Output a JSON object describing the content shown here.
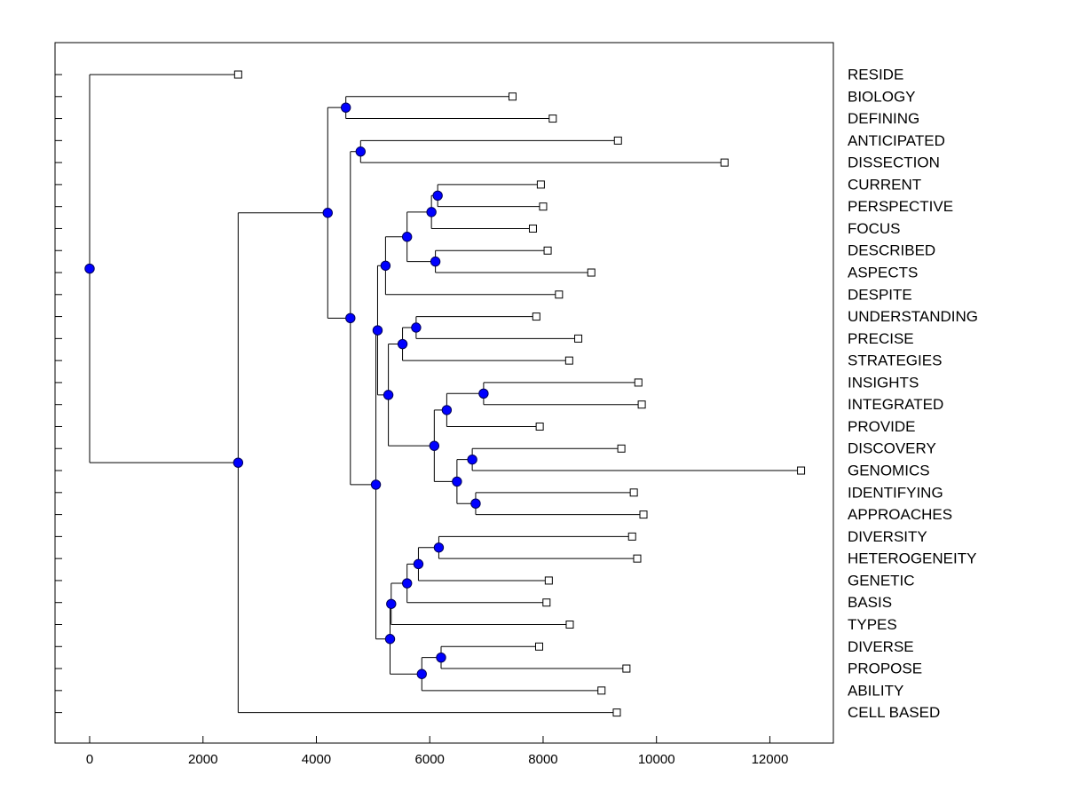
{
  "chart_data": {
    "type": "dendrogram",
    "title": "",
    "xlabel": "",
    "ylabel": "",
    "xlim": [
      -600,
      13200
    ],
    "x_ticks": [
      0,
      2000,
      4000,
      6000,
      8000,
      10000,
      12000
    ],
    "x_tick_labels": [
      "0",
      "2000",
      "4000",
      "6000",
      "8000",
      "10000",
      "12000"
    ],
    "leaves": [
      {
        "label": "RESIDE",
        "value": 2620
      },
      {
        "label": "BIOLOGY",
        "value": 7460
      },
      {
        "label": "DEFINING",
        "value": 8170
      },
      {
        "label": "ANTICIPATED",
        "value": 9320
      },
      {
        "label": "DISSECTION",
        "value": 11200
      },
      {
        "label": "CURRENT",
        "value": 7960
      },
      {
        "label": "PERSPECTIVE",
        "value": 8000
      },
      {
        "label": "FOCUS",
        "value": 7820
      },
      {
        "label": "DESCRIBED",
        "value": 8080
      },
      {
        "label": "ASPECTS",
        "value": 8850
      },
      {
        "label": "DESPITE",
        "value": 8280
      },
      {
        "label": "UNDERSTANDING",
        "value": 7880
      },
      {
        "label": "PRECISE",
        "value": 8620
      },
      {
        "label": "STRATEGIES",
        "value": 8460
      },
      {
        "label": "INSIGHTS",
        "value": 9680
      },
      {
        "label": "INTEGRATED",
        "value": 9740
      },
      {
        "label": "PROVIDE",
        "value": 7940
      },
      {
        "label": "DISCOVERY",
        "value": 9380
      },
      {
        "label": "GENOMICS",
        "value": 12550
      },
      {
        "label": "IDENTIFYING",
        "value": 9600
      },
      {
        "label": "APPROACHES",
        "value": 9770
      },
      {
        "label": "DIVERSITY",
        "value": 9570
      },
      {
        "label": "HETEROGENEITY",
        "value": 9660
      },
      {
        "label": "GENETIC",
        "value": 8100
      },
      {
        "label": "BASIS",
        "value": 8060
      },
      {
        "label": "TYPES",
        "value": 8470
      },
      {
        "label": "DIVERSE",
        "value": 7930
      },
      {
        "label": "PROPOSE",
        "value": 9470
      },
      {
        "label": "ABILITY",
        "value": 9030
      },
      {
        "label": "CELL BASED",
        "value": 9300
      }
    ],
    "merges": [
      {
        "id": "m_bio_def",
        "value": 4520,
        "children": [
          "L1",
          "L2"
        ]
      },
      {
        "id": "m_ant_dis",
        "value": 4780,
        "children": [
          "L3",
          "L4"
        ]
      },
      {
        "id": "m_cur_per",
        "value": 6140,
        "children": [
          "L5",
          "L6"
        ]
      },
      {
        "id": "m_cpf",
        "value": 6030,
        "children": [
          "m_cur_per",
          "L7"
        ]
      },
      {
        "id": "m_des_asp",
        "value": 6100,
        "children": [
          "L8",
          "L9"
        ]
      },
      {
        "id": "m_cpfda",
        "value": 5600,
        "children": [
          "m_cpf",
          "m_des_asp"
        ]
      },
      {
        "id": "m_despite_grp",
        "value": 5220,
        "children": [
          "m_cpfda",
          "L10"
        ]
      },
      {
        "id": "m_und_pre",
        "value": 5760,
        "children": [
          "L11",
          "L12"
        ]
      },
      {
        "id": "m_ups",
        "value": 5520,
        "children": [
          "m_und_pre",
          "L13"
        ]
      },
      {
        "id": "m_ins_int",
        "value": 6950,
        "children": [
          "L14",
          "L15"
        ]
      },
      {
        "id": "m_iip",
        "value": 6300,
        "children": [
          "m_ins_int",
          "L16"
        ]
      },
      {
        "id": "m_dis_gen",
        "value": 6750,
        "children": [
          "L17",
          "L18"
        ]
      },
      {
        "id": "m_ide_app",
        "value": 6810,
        "children": [
          "L19",
          "L20"
        ]
      },
      {
        "id": "m_dgia",
        "value": 6480,
        "children": [
          "m_dis_gen",
          "m_ide_app"
        ]
      },
      {
        "id": "m_iip_dgia",
        "value": 6080,
        "children": [
          "m_iip",
          "m_dgia"
        ]
      },
      {
        "id": "m_ups_rest",
        "value": 5270,
        "children": [
          "m_ups",
          "m_iip_dgia"
        ]
      },
      {
        "id": "m_upper_mid",
        "value": 5080,
        "children": [
          "m_despite_grp",
          "m_ups_rest"
        ]
      },
      {
        "id": "m_div_het",
        "value": 6160,
        "children": [
          "L21",
          "L22"
        ]
      },
      {
        "id": "m_dhg",
        "value": 5800,
        "children": [
          "m_div_het",
          "L23"
        ]
      },
      {
        "id": "m_dhgb",
        "value": 5600,
        "children": [
          "m_dhg",
          "L24"
        ]
      },
      {
        "id": "m_dhgbt",
        "value": 5320,
        "children": [
          "m_dhgb",
          "L25"
        ]
      },
      {
        "id": "m_dive_pro",
        "value": 6200,
        "children": [
          "L26",
          "L27"
        ]
      },
      {
        "id": "m_dpa",
        "value": 5860,
        "children": [
          "m_dive_pro",
          "L28"
        ]
      },
      {
        "id": "m_lower_grp",
        "value": 5300,
        "children": [
          "m_dhgbt",
          "m_dpa"
        ]
      },
      {
        "id": "m_mid_all",
        "value": 5050,
        "children": [
          "m_upper_mid",
          "m_lower_grp"
        ]
      },
      {
        "id": "m_ant_mid",
        "value": 4600,
        "children": [
          "m_ant_dis",
          "m_mid_all"
        ]
      },
      {
        "id": "m_bio_rest",
        "value": 4200,
        "children": [
          "m_bio_def",
          "m_ant_mid"
        ]
      },
      {
        "id": "m_main",
        "value": 2620,
        "children": [
          "m_bio_rest",
          "L29"
        ]
      },
      {
        "id": "m_root",
        "value": 0,
        "children": [
          "L0",
          "m_main"
        ]
      }
    ],
    "colors": {
      "node_fill": "#0000ff",
      "leaf_fill": "#ffffff",
      "line": "#000000"
    }
  }
}
